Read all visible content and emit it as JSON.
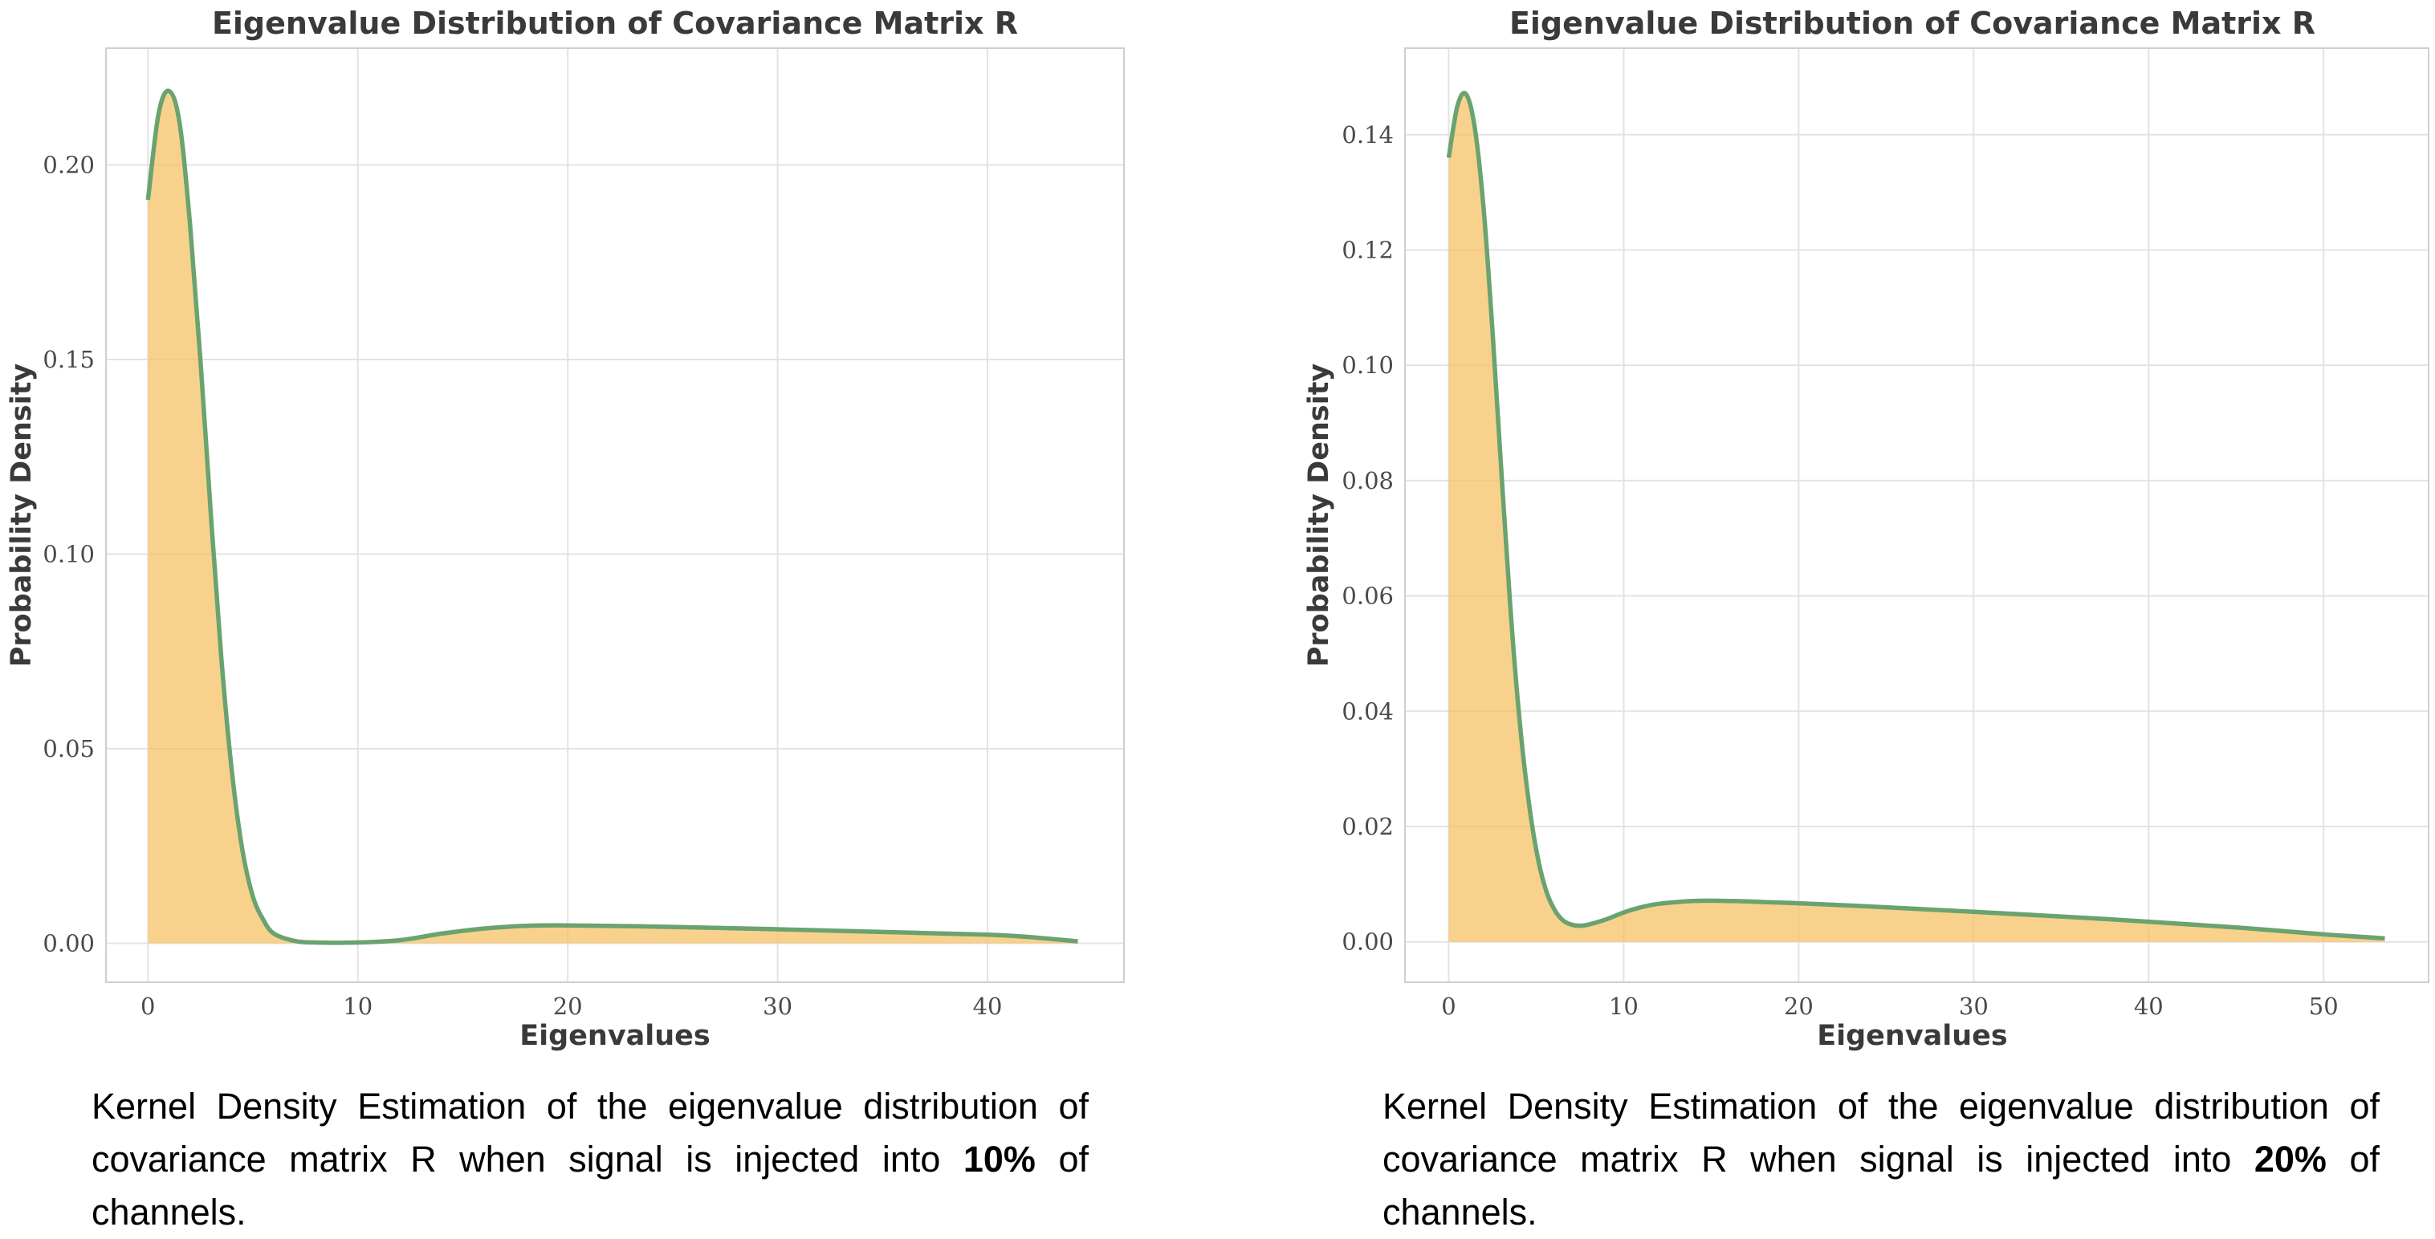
{
  "chart_data": [
    {
      "type": "area",
      "title": "Eigenvalue Distribution of Covariance Matrix R",
      "xlabel": "Eigenvalues",
      "ylabel": "Probability Density",
      "xlim": [
        -2,
        46.5
      ],
      "ylim": [
        -0.01,
        0.23
      ],
      "xticks": [
        0,
        10,
        20,
        30,
        40
      ],
      "xtick_labels": [
        "0",
        "10",
        "20",
        "30",
        "40"
      ],
      "yticks": [
        0.0,
        0.05,
        0.1,
        0.15,
        0.2
      ],
      "ytick_labels": [
        "0.00",
        "0.05",
        "0.10",
        "0.15",
        "0.20"
      ],
      "grid": true,
      "line_color": "#6aa36f",
      "fill_color": "#f5c060",
      "series": [
        {
          "x": [
            0.0,
            0.5,
            1.0,
            1.5,
            2.0,
            2.5,
            3.0,
            3.5,
            4.0,
            4.5,
            5.0,
            5.5,
            6.0,
            7.0,
            8.0,
            10.0,
            12.0,
            14.0,
            16.0,
            18.0,
            20.0,
            25.0,
            30.0,
            35.0,
            40.0,
            42.0,
            44.3
          ],
          "y": [
            0.191,
            0.213,
            0.219,
            0.211,
            0.185,
            0.15,
            0.11,
            0.073,
            0.044,
            0.024,
            0.012,
            0.006,
            0.0025,
            0.0006,
            0.0002,
            0.0002,
            0.0008,
            0.0025,
            0.0038,
            0.0045,
            0.0046,
            0.0042,
            0.0036,
            0.0029,
            0.0022,
            0.0016,
            0.0005
          ]
        }
      ]
    },
    {
      "type": "area",
      "title": "Eigenvalue Distribution of Covariance Matrix R",
      "xlabel": "Eigenvalues",
      "ylabel": "Probability Density",
      "xlim": [
        -2.5,
        56
      ],
      "ylim": [
        -0.007,
        0.155
      ],
      "xticks": [
        0,
        10,
        20,
        30,
        40,
        50
      ],
      "xtick_labels": [
        "0",
        "10",
        "20",
        "30",
        "40",
        "50"
      ],
      "yticks": [
        0.0,
        0.02,
        0.04,
        0.06,
        0.08,
        0.1,
        0.12,
        0.14
      ],
      "ytick_labels": [
        "0.00",
        "0.02",
        "0.04",
        "0.06",
        "0.08",
        "0.10",
        "0.12",
        "0.14"
      ],
      "grid": true,
      "line_color": "#6aa36f",
      "fill_color": "#f5c060",
      "series": [
        {
          "x": [
            0.0,
            0.5,
            1.0,
            1.5,
            2.0,
            2.5,
            3.0,
            3.5,
            4.0,
            4.5,
            5.0,
            5.5,
            6.0,
            6.5,
            7.0,
            7.5,
            8.0,
            9.0,
            10.0,
            11.0,
            12.0,
            14.0,
            16.0,
            18.0,
            20.0,
            25.0,
            30.0,
            35.0,
            40.0,
            45.0,
            50.0,
            53.5
          ],
          "y": [
            0.136,
            0.145,
            0.147,
            0.141,
            0.127,
            0.106,
            0.082,
            0.059,
            0.04,
            0.026,
            0.016,
            0.0095,
            0.0058,
            0.0038,
            0.003,
            0.0028,
            0.003,
            0.0039,
            0.0051,
            0.006,
            0.0066,
            0.0071,
            0.0071,
            0.0069,
            0.0067,
            0.006,
            0.0052,
            0.0044,
            0.0035,
            0.0025,
            0.0013,
            0.0006
          ]
        }
      ]
    }
  ],
  "captions": [
    {
      "text_before": "Kernel Density Estimation of the eigenvalue distribution of covariance matrix R when signal is injected into ",
      "bold": "10%",
      "text_after": " of channels."
    },
    {
      "text_before": "Kernel Density Estimation of the eigenvalue distribution of covariance matrix R when signal is injected into ",
      "bold": "20%",
      "text_after": " of channels."
    }
  ]
}
